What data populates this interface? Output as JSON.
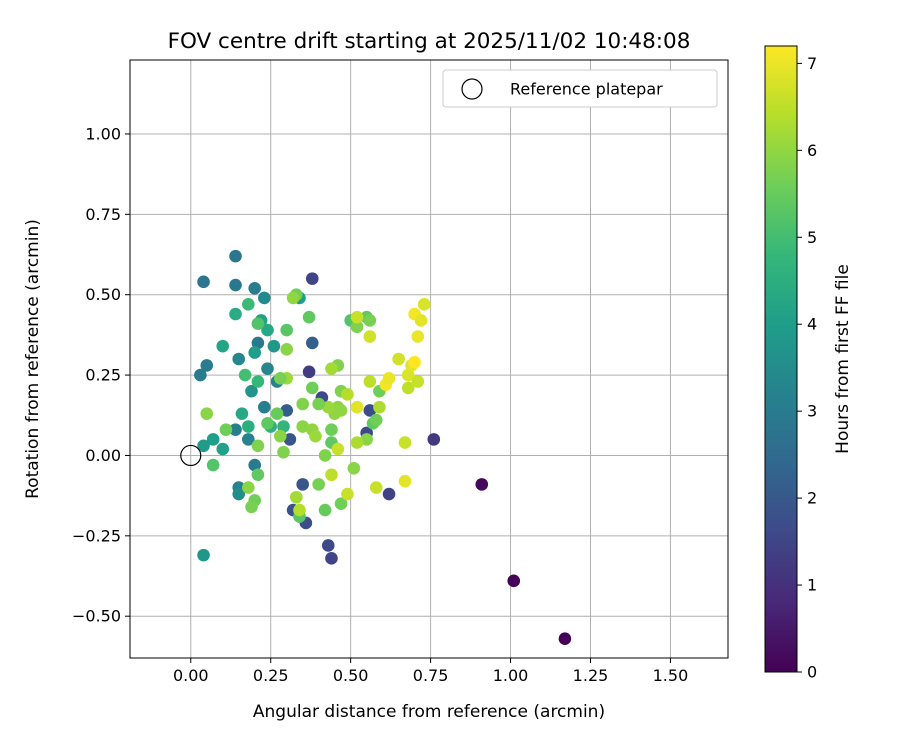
{
  "chart_data": {
    "type": "scatter",
    "title": "FOV centre drift starting at 2025/11/02 10:48:08",
    "xlabel": "Angular distance from reference (arcmin)",
    "ylabel": "Rotation from reference (arcmin)",
    "xlim": [
      -0.19,
      1.68
    ],
    "ylim": [
      -0.63,
      1.23
    ],
    "xticks": [
      0.0,
      0.25,
      0.5,
      0.75,
      1.0,
      1.25,
      1.5
    ],
    "xtick_labels": [
      "0.00",
      "0.25",
      "0.50",
      "0.75",
      "1.00",
      "1.25",
      "1.50"
    ],
    "yticks": [
      -0.5,
      -0.25,
      0.0,
      0.25,
      0.5,
      0.75,
      1.0
    ],
    "ytick_labels": [
      "−0.50",
      "−0.25",
      "0.00",
      "0.25",
      "0.50",
      "0.75",
      "1.00"
    ],
    "grid": true,
    "legend": {
      "position": "top-right",
      "label": "Reference platepar"
    },
    "reference_point": {
      "x": 0.0,
      "y": 0.0
    },
    "colorbar": {
      "label": "Hours from first FF file",
      "min": 0,
      "max": 7.2,
      "ticks": [
        0,
        1,
        2,
        3,
        4,
        5,
        6,
        7
      ],
      "tick_labels": [
        "0",
        "1",
        "2",
        "3",
        "4",
        "5",
        "6",
        "7"
      ],
      "colormap": [
        "#440154",
        "#482878",
        "#3e4989",
        "#31688e",
        "#26828e",
        "#1f9e89",
        "#35b779",
        "#6ece58",
        "#b5de2b",
        "#fde725"
      ]
    },
    "points": [
      {
        "x": 1.17,
        "y": -0.57,
        "h": 0.05
      },
      {
        "x": 1.01,
        "y": -0.39,
        "h": 0.1
      },
      {
        "x": 0.91,
        "y": -0.09,
        "h": 0.15
      },
      {
        "x": 0.76,
        "y": 0.05,
        "h": 1.2
      },
      {
        "x": 0.62,
        "y": -0.12,
        "h": 1.4
      },
      {
        "x": 0.44,
        "y": -0.32,
        "h": 1.5
      },
      {
        "x": 0.43,
        "y": -0.28,
        "h": 1.6
      },
      {
        "x": 0.38,
        "y": 0.55,
        "h": 1.5
      },
      {
        "x": 0.37,
        "y": 0.26,
        "h": 1.3
      },
      {
        "x": 0.36,
        "y": -0.21,
        "h": 1.7
      },
      {
        "x": 0.32,
        "y": -0.17,
        "h": 1.8
      },
      {
        "x": 0.35,
        "y": -0.09,
        "h": 1.9
      },
      {
        "x": 0.31,
        "y": 0.05,
        "h": 1.9
      },
      {
        "x": 0.41,
        "y": 0.18,
        "h": 1.6
      },
      {
        "x": 0.56,
        "y": 0.14,
        "h": 1.7
      },
      {
        "x": 0.55,
        "y": 0.07,
        "h": 1.6
      },
      {
        "x": 0.3,
        "y": 0.14,
        "h": 2.1
      },
      {
        "x": 0.38,
        "y": 0.35,
        "h": 2.2
      },
      {
        "x": 0.14,
        "y": 0.62,
        "h": 2.8
      },
      {
        "x": 0.14,
        "y": 0.53,
        "h": 2.9
      },
      {
        "x": 0.04,
        "y": 0.54,
        "h": 2.8
      },
      {
        "x": 0.05,
        "y": 0.28,
        "h": 3.0
      },
      {
        "x": 0.03,
        "y": 0.25,
        "h": 3.0
      },
      {
        "x": 0.04,
        "y": -0.31,
        "h": 3.8
      },
      {
        "x": 0.2,
        "y": 0.52,
        "h": 3.0
      },
      {
        "x": 0.23,
        "y": 0.49,
        "h": 3.4
      },
      {
        "x": 0.21,
        "y": 0.35,
        "h": 2.9
      },
      {
        "x": 0.24,
        "y": 0.27,
        "h": 3.3
      },
      {
        "x": 0.27,
        "y": 0.23,
        "h": 3.2
      },
      {
        "x": 0.23,
        "y": 0.15,
        "h": 3.1
      },
      {
        "x": 0.15,
        "y": 0.3,
        "h": 3.3
      },
      {
        "x": 0.26,
        "y": 0.34,
        "h": 3.8
      },
      {
        "x": 0.34,
        "y": 0.49,
        "h": 4.0
      },
      {
        "x": 0.14,
        "y": 0.08,
        "h": 3.1
      },
      {
        "x": 0.18,
        "y": 0.05,
        "h": 3.2
      },
      {
        "x": 0.2,
        "y": -0.03,
        "h": 3.0
      },
      {
        "x": 0.15,
        "y": -0.1,
        "h": 3.2
      },
      {
        "x": 0.15,
        "y": -0.12,
        "h": 3.5
      },
      {
        "x": 0.19,
        "y": 0.2,
        "h": 3.7
      },
      {
        "x": 0.2,
        "y": 0.32,
        "h": 4.0
      },
      {
        "x": 0.22,
        "y": 0.42,
        "h": 4.1
      },
      {
        "x": 0.1,
        "y": 0.34,
        "h": 4.2
      },
      {
        "x": 0.14,
        "y": 0.44,
        "h": 4.4
      },
      {
        "x": 0.24,
        "y": 0.39,
        "h": 4.3
      },
      {
        "x": 0.07,
        "y": 0.05,
        "h": 4.0
      },
      {
        "x": 0.04,
        "y": 0.03,
        "h": 3.9
      },
      {
        "x": 0.1,
        "y": 0.02,
        "h": 4.1
      },
      {
        "x": 0.16,
        "y": 0.13,
        "h": 4.3
      },
      {
        "x": 0.18,
        "y": 0.09,
        "h": 4.5
      },
      {
        "x": 0.25,
        "y": 0.09,
        "h": 4.6
      },
      {
        "x": 0.29,
        "y": 0.09,
        "h": 4.7
      },
      {
        "x": 0.21,
        "y": 0.23,
        "h": 4.8
      },
      {
        "x": 0.17,
        "y": 0.25,
        "h": 5.0
      },
      {
        "x": 0.18,
        "y": 0.47,
        "h": 4.9
      },
      {
        "x": 0.21,
        "y": 0.41,
        "h": 5.2
      },
      {
        "x": 0.24,
        "y": 0.1,
        "h": 5.4
      },
      {
        "x": 0.27,
        "y": 0.13,
        "h": 5.5
      },
      {
        "x": 0.3,
        "y": 0.39,
        "h": 5.3
      },
      {
        "x": 0.33,
        "y": 0.5,
        "h": 5.6
      },
      {
        "x": 0.34,
        "y": -0.19,
        "h": 5.3
      },
      {
        "x": 0.42,
        "y": -0.17,
        "h": 5.5
      },
      {
        "x": 0.4,
        "y": -0.09,
        "h": 5.7
      },
      {
        "x": 0.42,
        "y": 0.0,
        "h": 5.8
      },
      {
        "x": 0.44,
        "y": 0.08,
        "h": 5.6
      },
      {
        "x": 0.44,
        "y": 0.04,
        "h": 5.4
      },
      {
        "x": 0.47,
        "y": -0.15,
        "h": 5.6
      },
      {
        "x": 0.51,
        "y": -0.04,
        "h": 5.9
      },
      {
        "x": 0.5,
        "y": 0.42,
        "h": 5.2
      },
      {
        "x": 0.55,
        "y": 0.43,
        "h": 5.4
      },
      {
        "x": 0.56,
        "y": 0.42,
        "h": 5.7
      },
      {
        "x": 0.52,
        "y": 0.4,
        "h": 5.8
      },
      {
        "x": 0.57,
        "y": 0.1,
        "h": 5.4
      },
      {
        "x": 0.58,
        "y": 0.11,
        "h": 5.6
      },
      {
        "x": 0.59,
        "y": 0.2,
        "h": 5.6
      },
      {
        "x": 0.55,
        "y": 0.05,
        "h": 5.9
      },
      {
        "x": 0.46,
        "y": 0.28,
        "h": 5.8
      },
      {
        "x": 0.47,
        "y": 0.2,
        "h": 5.8
      },
      {
        "x": 0.46,
        "y": 0.15,
        "h": 5.9
      },
      {
        "x": 0.47,
        "y": 0.14,
        "h": 6.0
      },
      {
        "x": 0.45,
        "y": 0.13,
        "h": 6.0
      },
      {
        "x": 0.43,
        "y": 0.15,
        "h": 6.1
      },
      {
        "x": 0.4,
        "y": 0.16,
        "h": 5.7
      },
      {
        "x": 0.38,
        "y": 0.21,
        "h": 5.6
      },
      {
        "x": 0.37,
        "y": 0.43,
        "h": 5.4
      },
      {
        "x": 0.35,
        "y": 0.16,
        "h": 5.8
      },
      {
        "x": 0.35,
        "y": 0.09,
        "h": 5.9
      },
      {
        "x": 0.38,
        "y": 0.08,
        "h": 6.0
      },
      {
        "x": 0.39,
        "y": 0.06,
        "h": 6.1
      },
      {
        "x": 0.3,
        "y": 0.33,
        "h": 5.9
      },
      {
        "x": 0.3,
        "y": 0.24,
        "h": 6.1
      },
      {
        "x": 0.28,
        "y": 0.24,
        "h": 5.7
      },
      {
        "x": 0.28,
        "y": 0.06,
        "h": 5.9
      },
      {
        "x": 0.29,
        "y": 0.01,
        "h": 5.8
      },
      {
        "x": 0.32,
        "y": 0.49,
        "h": 6.0
      },
      {
        "x": 0.2,
        "y": -0.14,
        "h": 5.6
      },
      {
        "x": 0.19,
        "y": -0.16,
        "h": 5.7
      },
      {
        "x": 0.18,
        "y": -0.1,
        "h": 5.9
      },
      {
        "x": 0.21,
        "y": -0.06,
        "h": 5.4
      },
      {
        "x": 0.21,
        "y": 0.03,
        "h": 5.8
      },
      {
        "x": 0.11,
        "y": 0.08,
        "h": 5.6
      },
      {
        "x": 0.07,
        "y": -0.03,
        "h": 5.2
      },
      {
        "x": 0.05,
        "y": 0.13,
        "h": 5.9
      },
      {
        "x": 0.33,
        "y": -0.13,
        "h": 6.2
      },
      {
        "x": 0.34,
        "y": -0.17,
        "h": 6.4
      },
      {
        "x": 0.44,
        "y": -0.06,
        "h": 6.5
      },
      {
        "x": 0.49,
        "y": -0.12,
        "h": 6.6
      },
      {
        "x": 0.46,
        "y": 0.02,
        "h": 6.6
      },
      {
        "x": 0.52,
        "y": 0.04,
        "h": 6.3
      },
      {
        "x": 0.52,
        "y": 0.15,
        "h": 6.9
      },
      {
        "x": 0.49,
        "y": 0.19,
        "h": 6.4
      },
      {
        "x": 0.44,
        "y": 0.27,
        "h": 6.2
      },
      {
        "x": 0.52,
        "y": 0.43,
        "h": 6.6
      },
      {
        "x": 0.56,
        "y": 0.37,
        "h": 6.7
      },
      {
        "x": 0.56,
        "y": 0.23,
        "h": 6.5
      },
      {
        "x": 0.59,
        "y": 0.15,
        "h": 6.3
      },
      {
        "x": 0.58,
        "y": -0.1,
        "h": 6.6
      },
      {
        "x": 0.61,
        "y": 0.22,
        "h": 7.1
      },
      {
        "x": 0.62,
        "y": 0.24,
        "h": 7.0
      },
      {
        "x": 0.65,
        "y": 0.3,
        "h": 6.7
      },
      {
        "x": 0.68,
        "y": 0.21,
        "h": 6.5
      },
      {
        "x": 0.68,
        "y": 0.25,
        "h": 6.8
      },
      {
        "x": 0.69,
        "y": 0.28,
        "h": 6.9
      },
      {
        "x": 0.7,
        "y": 0.29,
        "h": 7.2
      },
      {
        "x": 0.71,
        "y": 0.23,
        "h": 6.6
      },
      {
        "x": 0.71,
        "y": 0.37,
        "h": 7.0
      },
      {
        "x": 0.7,
        "y": 0.44,
        "h": 7.1
      },
      {
        "x": 0.72,
        "y": 0.42,
        "h": 6.9
      },
      {
        "x": 0.73,
        "y": 0.47,
        "h": 6.8
      },
      {
        "x": 0.67,
        "y": 0.04,
        "h": 6.6
      },
      {
        "x": 0.67,
        "y": -0.08,
        "h": 6.9
      }
    ]
  }
}
